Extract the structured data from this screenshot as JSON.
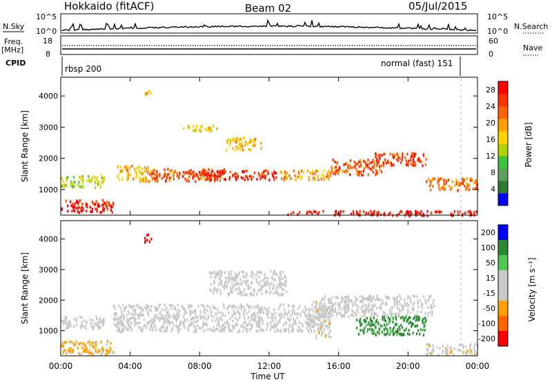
{
  "header": {
    "radar_title": "Hokkaido (fitACF)",
    "beam": "Beam 02",
    "date": "05/Jul/2015"
  },
  "top_panels": {
    "nsky_label": "N.Sky",
    "nsky_ticks": [
      "10^5",
      "10^0"
    ],
    "nsearch_label": "N.Search",
    "nsearch_ticks": [
      "10^5",
      "10^0"
    ],
    "freq_label": "Freq.",
    "freq_unit": "[MHz]",
    "freq_ticks": [
      "18",
      "8"
    ],
    "nave_label": "Nave",
    "nave_ticks": [
      "60",
      "0"
    ],
    "cpid_label": "CPID",
    "cpid_left": "rbsp 200",
    "cpid_right": "normal (fast) 151"
  },
  "colors": {
    "power": [
      "#0000ff",
      "#2a7a32",
      "#5fa05f",
      "#3cc23c",
      "#b4d200",
      "#ffd200",
      "#ffa000",
      "#ff6400",
      "#ff3200",
      "#ff0000"
    ],
    "velocity": [
      "#ff0000",
      "#ff6400",
      "#ffa000",
      "#c8c8c8",
      "#c8c8c8",
      "#50c850",
      "#2a8a32",
      "#0000ff"
    ],
    "ground_scatter": "#c8c8c8"
  },
  "chart_data": [
    {
      "type": "heatmap",
      "title": "Power",
      "ylabel": "Slant Range [km]",
      "xlabel": "Time UT",
      "x_ticks": [
        "00:00",
        "04:00",
        "08:00",
        "12:00",
        "16:00",
        "20:00",
        "00:00"
      ],
      "y_ticks": [
        "1000",
        "2000",
        "3000",
        "4000"
      ],
      "ylim": [
        180,
        4600
      ],
      "xlim_hours": [
        0,
        24
      ],
      "colorbar": {
        "label": "Power [dB]",
        "ticks": [
          "4",
          "8",
          "12",
          "16",
          "20",
          "24",
          "28"
        ],
        "range": [
          0,
          30
        ]
      },
      "scatter_bands": [
        {
          "t0": 0.0,
          "t1": 3.0,
          "r0": 300,
          "r1": 700,
          "value": 27
        },
        {
          "t0": 0.0,
          "t1": 2.5,
          "r0": 1100,
          "r1": 1500,
          "value": 14
        },
        {
          "t0": 3.2,
          "t1": 5.0,
          "r0": 1300,
          "r1": 1800,
          "value": 18
        },
        {
          "t0": 5.0,
          "t1": 9.5,
          "r0": 1300,
          "r1": 1700,
          "value": 24
        },
        {
          "t0": 8.0,
          "t1": 12.5,
          "r0": 1350,
          "r1": 1650,
          "value": 27
        },
        {
          "t0": 9.5,
          "t1": 11.5,
          "r0": 2300,
          "r1": 2700,
          "value": 18
        },
        {
          "t0": 12.5,
          "t1": 15.5,
          "r0": 1350,
          "r1": 1650,
          "value": 20
        },
        {
          "t0": 15.5,
          "t1": 18.5,
          "r0": 1500,
          "r1": 2000,
          "value": 24
        },
        {
          "t0": 18.0,
          "t1": 21.0,
          "r0": 1800,
          "r1": 2200,
          "value": 25
        },
        {
          "t0": 21.0,
          "t1": 24.0,
          "r0": 1000,
          "r1": 1400,
          "value": 22
        },
        {
          "t0": 13.0,
          "t1": 24.0,
          "r0": 200,
          "r1": 350,
          "value": 28
        },
        {
          "t0": 4.8,
          "t1": 5.2,
          "r0": 4000,
          "r1": 4200,
          "value": 18
        },
        {
          "t0": 7.0,
          "t1": 9.0,
          "r0": 2900,
          "r1": 3100,
          "value": 16
        }
      ]
    },
    {
      "type": "heatmap",
      "title": "Velocity",
      "ylabel": "Slant Range [km]",
      "xlabel": "Time UT",
      "x_ticks": [
        "00:00",
        "04:00",
        "08:00",
        "12:00",
        "16:00",
        "20:00",
        "00:00"
      ],
      "y_ticks": [
        "1000",
        "2000",
        "3000",
        "4000"
      ],
      "ylim": [
        180,
        4600
      ],
      "xlim_hours": [
        0,
        24
      ],
      "colorbar": {
        "label": "Velocity [m s⁻¹]",
        "ticks": [
          "200",
          "100",
          "50",
          "15",
          "-15",
          "-50",
          "-100",
          "-200"
        ],
        "range": [
          -250,
          250
        ]
      },
      "scatter_bands": [
        {
          "t0": 0.0,
          "t1": 3.0,
          "r0": 250,
          "r1": 700,
          "value": -60
        },
        {
          "t0": 0.0,
          "t1": 2.5,
          "r0": 1100,
          "r1": 1500,
          "value": 0
        },
        {
          "t0": 3.0,
          "t1": 15.0,
          "r0": 1000,
          "r1": 1900,
          "value": 0
        },
        {
          "t0": 8.5,
          "t1": 13.0,
          "r0": 2200,
          "r1": 3000,
          "value": 0
        },
        {
          "t0": 15.0,
          "t1": 21.5,
          "r0": 1500,
          "r1": 2200,
          "value": 0
        },
        {
          "t0": 17.0,
          "t1": 21.0,
          "r0": 900,
          "r1": 1500,
          "value": 60
        },
        {
          "t0": 14.5,
          "t1": 15.5,
          "r0": 800,
          "r1": 2000,
          "value": -40
        },
        {
          "t0": 21.0,
          "t1": 24.0,
          "r0": 250,
          "r1": 600,
          "value": -40
        },
        {
          "t0": 4.8,
          "t1": 5.2,
          "r0": 3900,
          "r1": 4200,
          "value": -250
        }
      ]
    }
  ]
}
